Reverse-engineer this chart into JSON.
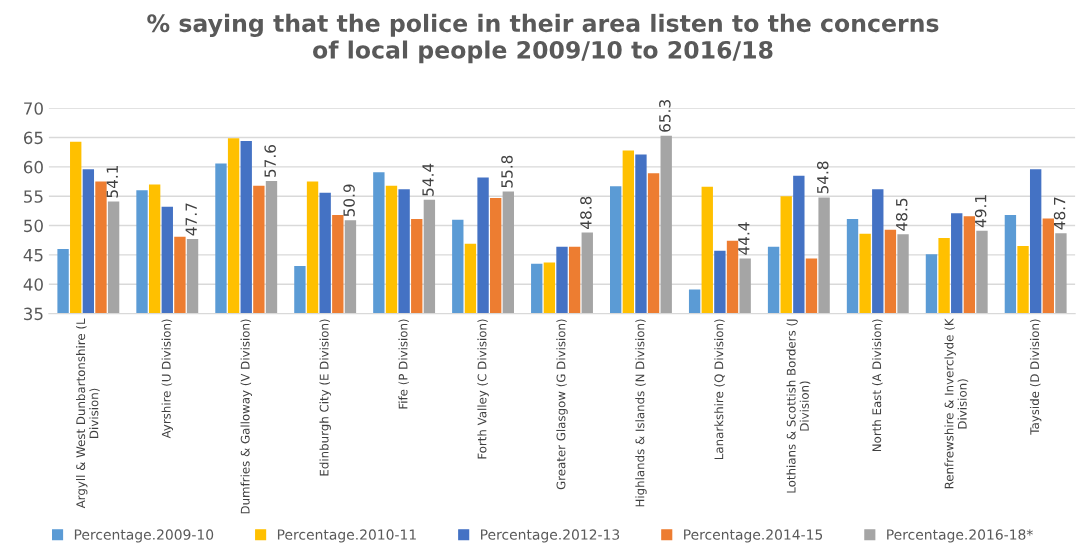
{
  "chart_data": {
    "type": "bar",
    "title": "% saying that the police in their area listen to the concerns\nof local people 2009/10 to 2016/18",
    "categories": [
      "Argyll & West Dunbartonshire (L\nDivision)",
      "Ayrshire (U Division)",
      "Dumfries & Galloway (V Division)",
      "Edinburgh City (E Division)",
      "Fife (P Division)",
      "Forth Valley (C Division)",
      "Greater Glasgow (G Division)",
      "Highlands & Islands (N Division)",
      "Lanarkshire (Q Division)",
      "Lothians & Scottish Borders (J\nDivision)",
      "North East (A Division)",
      "Renfrewshire & Inverclyde (K\nDivision)",
      "Tayside (D Division)"
    ],
    "series": [
      {
        "name": "Percentage.2009-10",
        "color": "#5b9bd5",
        "values": [
          46.0,
          56.0,
          60.6,
          43.1,
          59.1,
          51.0,
          43.5,
          56.7,
          39.1,
          46.4,
          51.1,
          45.1,
          51.8
        ]
      },
      {
        "name": "Percentage.2010-11",
        "color": "#ffc000",
        "values": [
          64.3,
          57.0,
          64.9,
          57.5,
          56.8,
          46.9,
          43.7,
          62.8,
          56.6,
          55.0,
          48.6,
          47.9,
          46.5
        ]
      },
      {
        "name": "Percentage.2012-13",
        "color": "#4472c4",
        "values": [
          59.6,
          53.2,
          64.4,
          55.6,
          56.2,
          58.2,
          46.4,
          62.1,
          45.7,
          58.5,
          56.2,
          52.1,
          59.6
        ]
      },
      {
        "name": "Percentage.2014-15",
        "color": "#ed7d31",
        "values": [
          57.5,
          48.1,
          56.8,
          51.8,
          51.1,
          54.7,
          46.4,
          58.9,
          47.4,
          44.4,
          49.3,
          51.6,
          51.2
        ]
      },
      {
        "name": "Percentage.2016-18*",
        "color": "#a5a5a5",
        "values": [
          54.1,
          47.7,
          57.6,
          50.9,
          54.4,
          55.8,
          48.8,
          65.3,
          44.4,
          54.8,
          48.5,
          49.1,
          48.7
        ],
        "value_labels": [
          "54.1",
          "47.7",
          "57.6",
          "50.9",
          "54.4",
          "55.8",
          "48.8",
          "65.3",
          "44.4",
          "54.8",
          "48.5",
          "49.1",
          "48.7"
        ]
      }
    ],
    "ylim": [
      35,
      70
    ],
    "yticks": [
      35,
      40,
      45,
      50,
      55,
      60,
      65,
      70
    ],
    "grid": "y",
    "legend": "bottom"
  }
}
